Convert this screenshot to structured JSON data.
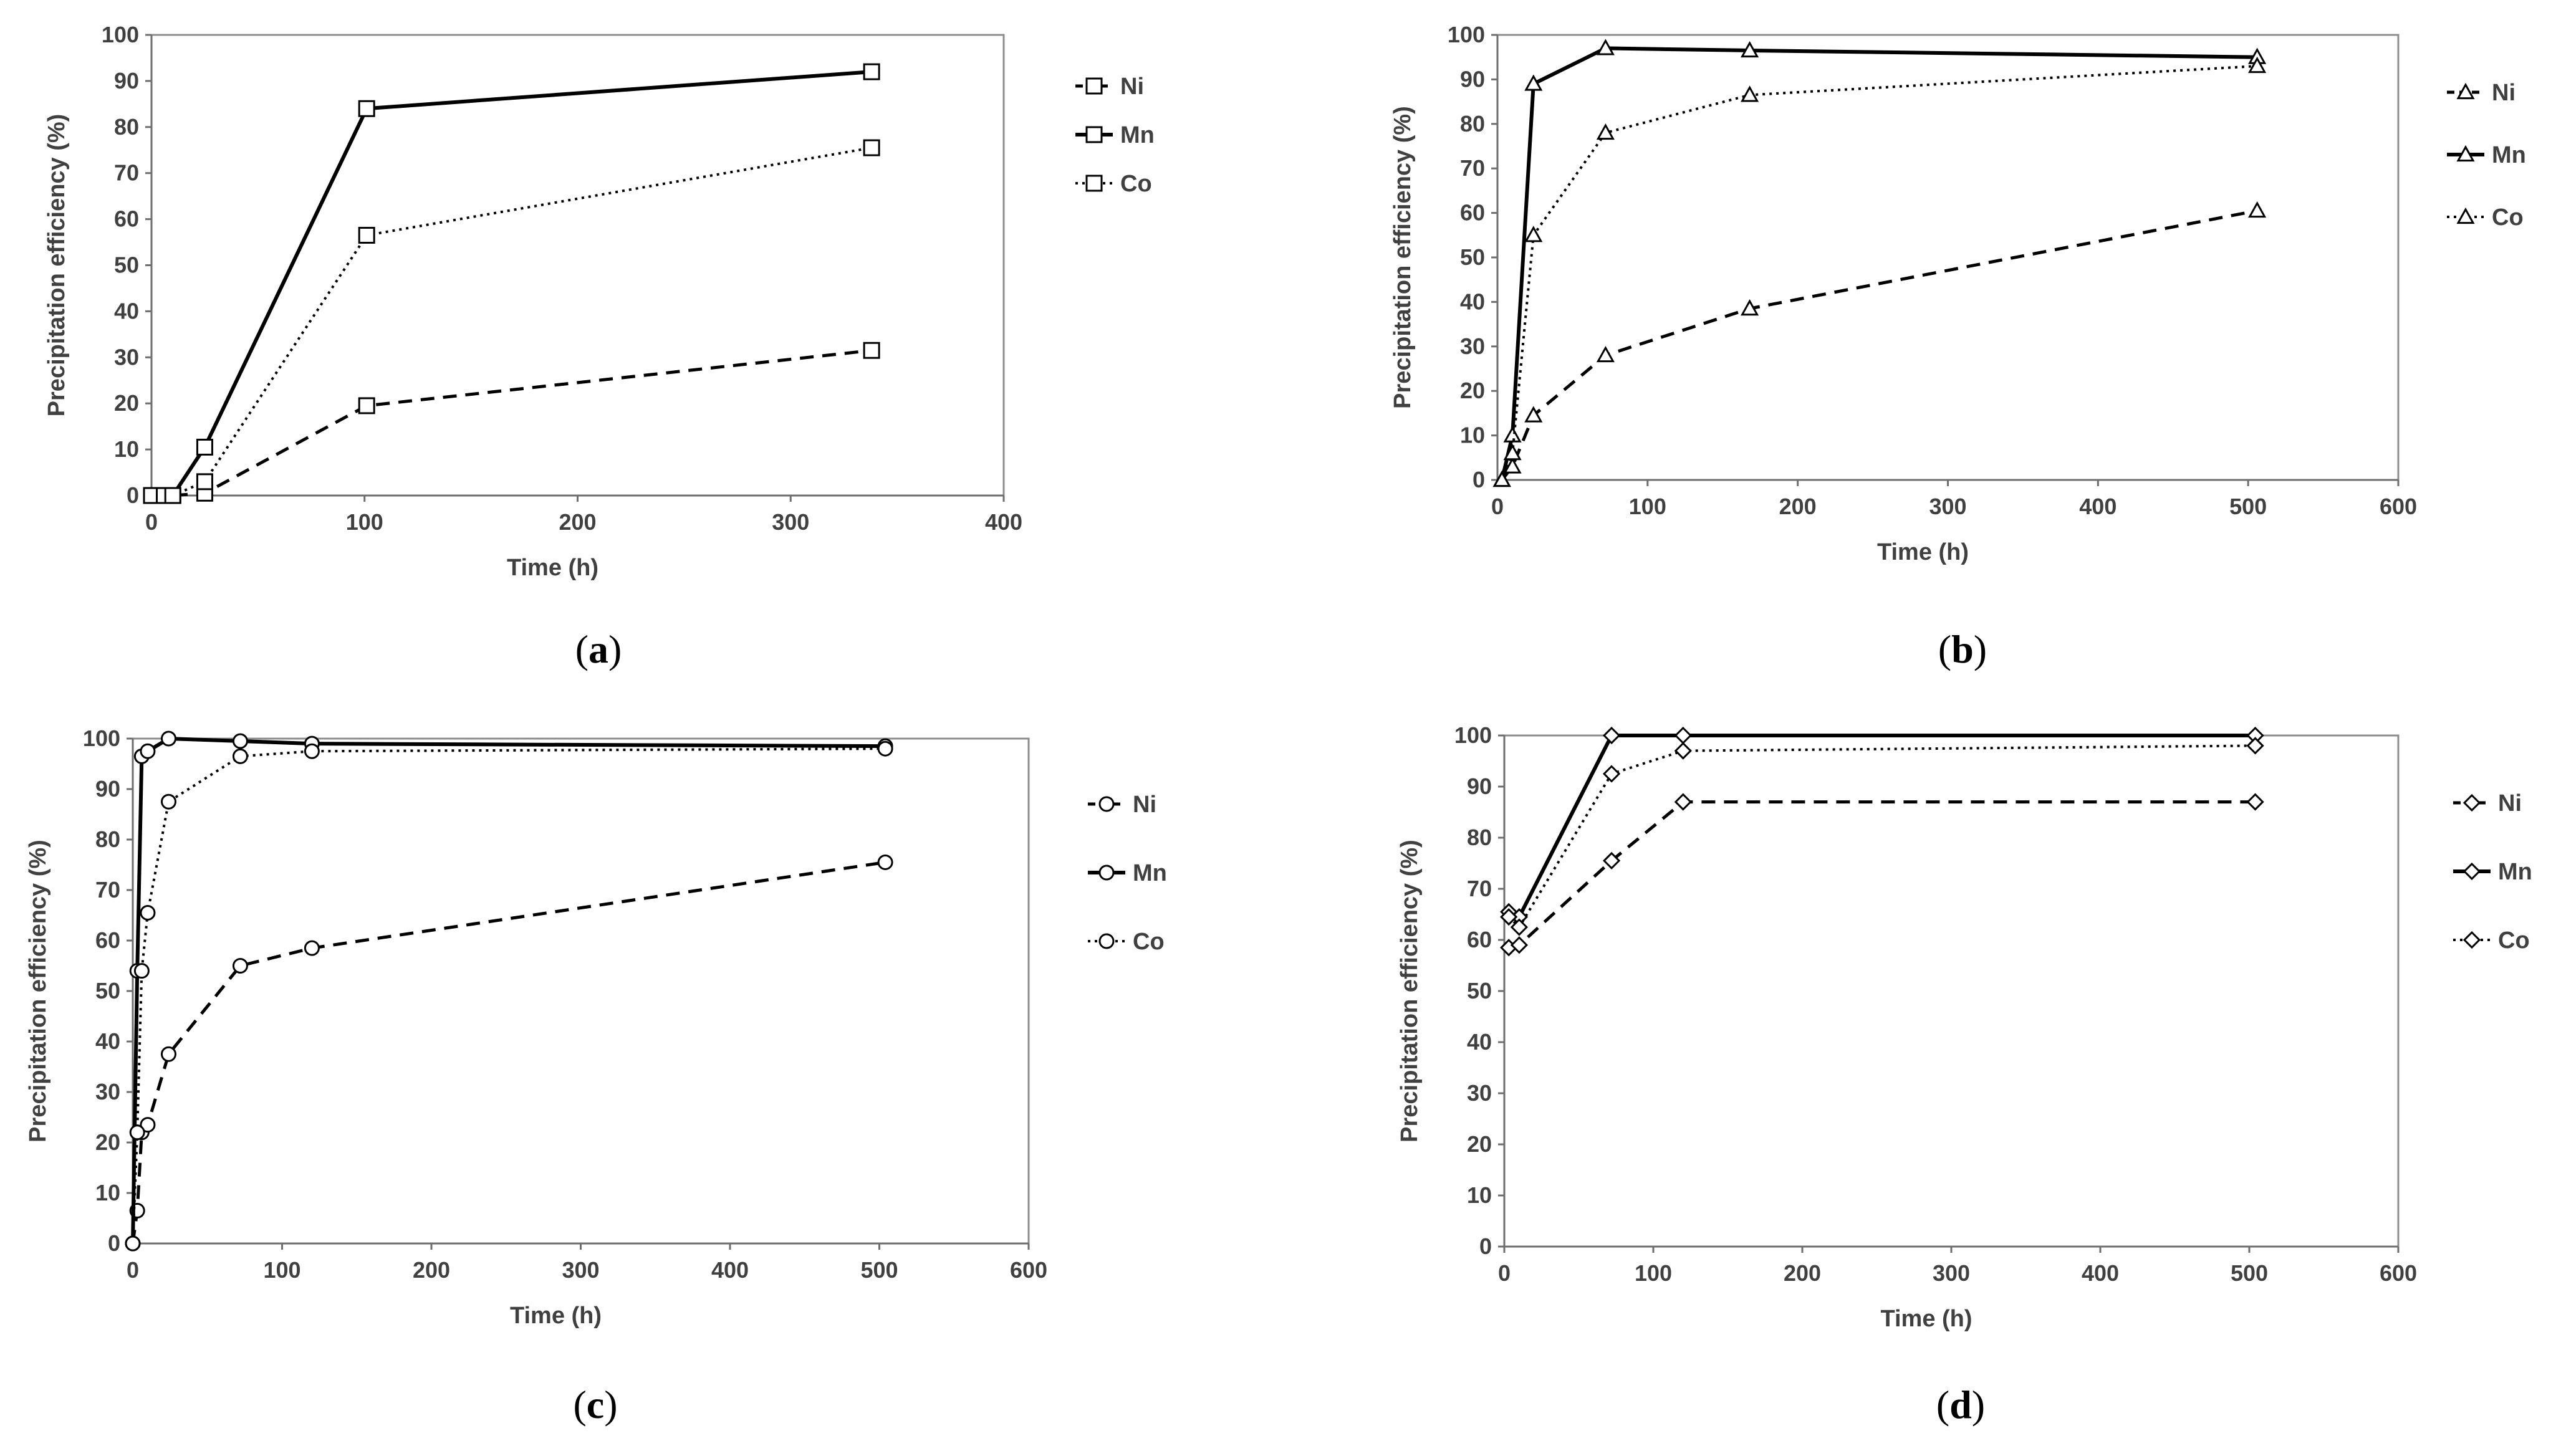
{
  "chart_data": [
    {
      "type": "line",
      "panel_label": {
        "open": "(",
        "letter": "a",
        "close": ")"
      },
      "xlabel": "Time (h)",
      "ylabel": "Precipitation efficiency (%)",
      "xlim": [
        0,
        400
      ],
      "ylim": [
        0,
        100
      ],
      "xticks": [
        "0",
        "100",
        "200",
        "300",
        "400"
      ],
      "yticks": [
        "0",
        "10",
        "20",
        "30",
        "40",
        "50",
        "60",
        "70",
        "80",
        "90",
        "100"
      ],
      "marker": "square",
      "legend_position": "right",
      "series": [
        {
          "name": "Ni",
          "style": "dashed",
          "x": [
            0,
            6,
            10,
            25,
            101,
            338
          ],
          "y": [
            0,
            0,
            0,
            0.5,
            19.5,
            31.5
          ]
        },
        {
          "name": "Mn",
          "style": "solid",
          "x": [
            0,
            6,
            10,
            25,
            101,
            338
          ],
          "y": [
            0,
            0,
            0,
            10.5,
            84,
            92
          ]
        },
        {
          "name": "Co",
          "style": "dotted",
          "x": [
            0,
            6,
            10,
            25,
            101,
            338
          ],
          "y": [
            0,
            0,
            0,
            3,
            56.5,
            75.5
          ]
        }
      ]
    },
    {
      "type": "line",
      "panel_label": {
        "open": "(",
        "letter": "b",
        "close": ")"
      },
      "xlabel": "Time (h)",
      "ylabel": "Precipitation efficiency (%)",
      "xlim": [
        0,
        600
      ],
      "ylim": [
        0,
        100
      ],
      "xticks": [
        "0",
        "100",
        "200",
        "300",
        "400",
        "500",
        "600"
      ],
      "yticks": [
        "0",
        "10",
        "20",
        "30",
        "40",
        "50",
        "60",
        "70",
        "80",
        "90",
        "100"
      ],
      "marker": "triangle",
      "legend_position": "right",
      "series": [
        {
          "name": "Ni",
          "style": "dashed",
          "x": [
            3,
            10,
            24,
            72,
            168,
            506
          ],
          "y": [
            0,
            3,
            14.5,
            28,
            38.5,
            60.5
          ]
        },
        {
          "name": "Mn",
          "style": "solid",
          "x": [
            3,
            10,
            24,
            72,
            168,
            506
          ],
          "y": [
            0,
            10,
            89,
            97,
            96.5,
            95
          ]
        },
        {
          "name": "Co",
          "style": "dotted",
          "x": [
            3,
            10,
            24,
            72,
            168,
            506
          ],
          "y": [
            0,
            6,
            55,
            78,
            86.5,
            93
          ]
        }
      ]
    },
    {
      "type": "line",
      "panel_label": {
        "open": "(",
        "letter": "c",
        "close": ")"
      },
      "xlabel": "Time (h)",
      "ylabel": "Precipitation efficiency (%)",
      "xlim": [
        0,
        600
      ],
      "ylim": [
        0,
        100
      ],
      "xticks": [
        "0",
        "100",
        "200",
        "300",
        "400",
        "500",
        "600"
      ],
      "yticks": [
        "0",
        "10",
        "20",
        "30",
        "40",
        "50",
        "60",
        "70",
        "80",
        "90",
        "100"
      ],
      "marker": "circle",
      "legend_position": "right",
      "series": [
        {
          "name": "Ni",
          "style": "dashed",
          "x": [
            0,
            3,
            6,
            10,
            24,
            72,
            120,
            504
          ],
          "y": [
            0,
            6.5,
            22,
            23.5,
            37.5,
            55,
            58.5,
            75.5
          ]
        },
        {
          "name": "Mn",
          "style": "solid",
          "x": [
            0,
            3,
            6,
            10,
            24,
            72,
            120,
            504
          ],
          "y": [
            0,
            54,
            96.5,
            97.5,
            100,
            99.5,
            99,
            98.5
          ]
        },
        {
          "name": "Co",
          "style": "dotted",
          "x": [
            0,
            3,
            6,
            10,
            24,
            72,
            120,
            504
          ],
          "y": [
            0,
            22,
            54,
            65.5,
            87.5,
            96.5,
            97.5,
            98
          ]
        }
      ]
    },
    {
      "type": "line",
      "panel_label": {
        "open": "(",
        "letter": "d",
        "close": ")"
      },
      "xlabel": "Time (h)",
      "ylabel": "Precipitation efficiency (%)",
      "xlim": [
        0,
        600
      ],
      "ylim": [
        0,
        100
      ],
      "xticks": [
        "0",
        "100",
        "200",
        "300",
        "400",
        "500",
        "600"
      ],
      "yticks": [
        "0",
        "10",
        "20",
        "30",
        "40",
        "50",
        "60",
        "70",
        "80",
        "90",
        "100"
      ],
      "marker": "diamond",
      "legend_position": "right",
      "series": [
        {
          "name": "Ni",
          "style": "dashed",
          "x": [
            3,
            10,
            72,
            120,
            504
          ],
          "y": [
            58.5,
            59,
            75.5,
            87,
            87
          ]
        },
        {
          "name": "Mn",
          "style": "solid",
          "x": [
            3,
            10,
            72,
            120,
            504
          ],
          "y": [
            65.5,
            64.5,
            100,
            100,
            100
          ]
        },
        {
          "name": "Co",
          "style": "dotted",
          "x": [
            3,
            10,
            72,
            120,
            504
          ],
          "y": [
            64.5,
            62.5,
            92.5,
            97,
            98
          ]
        }
      ]
    }
  ]
}
